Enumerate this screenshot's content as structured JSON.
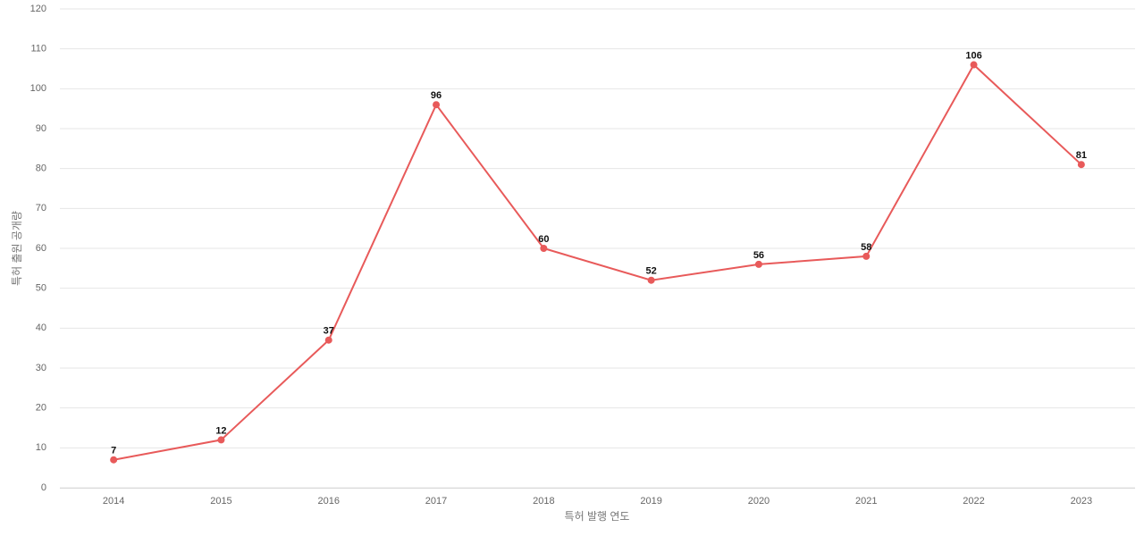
{
  "chart_data": {
    "type": "line",
    "x_label": "특허 발행 연도",
    "y_label": "특허 출원 공개량",
    "categories": [
      "2014",
      "2015",
      "2016",
      "2017",
      "2018",
      "2019",
      "2020",
      "2021",
      "2022",
      "2023"
    ],
    "series": [
      {
        "color": "#e85a5a",
        "values": [
          7,
          12,
          37,
          96,
          60,
          52,
          56,
          58,
          106,
          81
        ]
      }
    ],
    "ylim": [
      0,
      120
    ],
    "yticks": [
      0,
      10,
      20,
      30,
      40,
      50,
      60,
      70,
      80,
      90,
      100,
      110,
      120
    ],
    "grid": true
  }
}
